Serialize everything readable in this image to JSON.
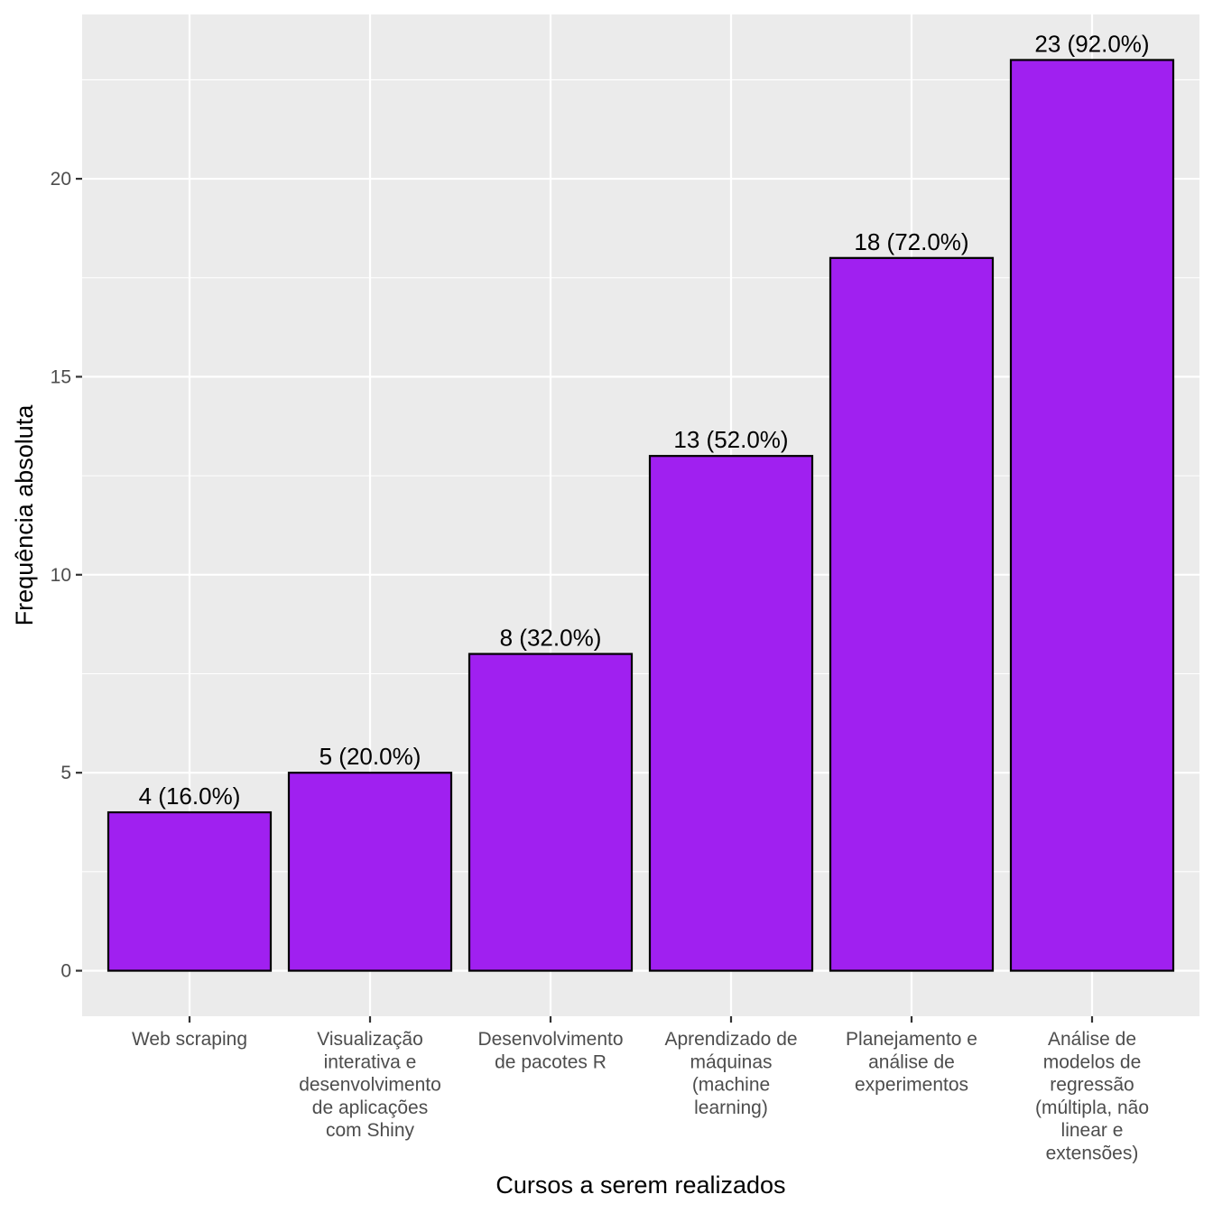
{
  "chart_data": {
    "type": "bar",
    "categories": [
      [
        "Web scraping"
      ],
      [
        "Visualização",
        "interativa e",
        "desenvolvimento",
        "de aplicações",
        "com Shiny"
      ],
      [
        "Desenvolvimento",
        "de pacotes R"
      ],
      [
        "Aprendizado de",
        "máquinas",
        "(machine",
        "learning)"
      ],
      [
        "Planejamento e",
        "análise de",
        "experimentos"
      ],
      [
        "Análise de",
        "modelos de",
        "regressão",
        "(múltipla, não",
        "linear e",
        "extensões)"
      ]
    ],
    "values": [
      4,
      5,
      8,
      13,
      18,
      23
    ],
    "data_labels": [
      "4 (16.0%)",
      "5 (20.0%)",
      "8 (32.0%)",
      "13 (52.0%)",
      "18 (72.0%)",
      "23 (92.0%)"
    ],
    "xlabel": "Cursos a serem realizados",
    "ylabel": "Frequência absoluta",
    "yticks": [
      0,
      5,
      10,
      15,
      20
    ],
    "ylim": [
      -1.15,
      24.15
    ],
    "grid": true,
    "colors": {
      "bar_fill": "#A020F0",
      "bar_stroke": "#000000",
      "panel_background": "#EBEBEB",
      "grid_line": "#FFFFFF"
    }
  }
}
